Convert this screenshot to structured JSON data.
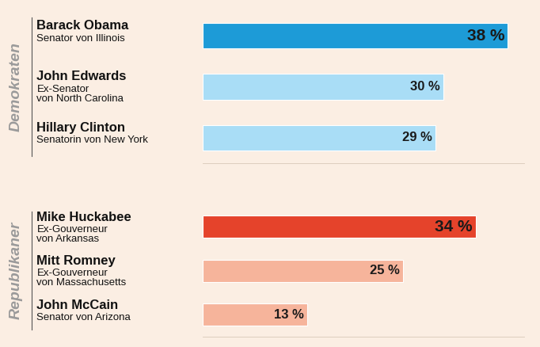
{
  "chart_data": [
    {
      "type": "bar",
      "orientation": "horizontal",
      "title": "Demokraten",
      "categories": [
        "Barack Obama",
        "John Edwards",
        "Hillary Clinton"
      ],
      "annotations": [
        "Senator von Illinois",
        "Ex-Senator\nvon North Carolina",
        "Senatorin von New York"
      ],
      "values": [
        38,
        30,
        29
      ],
      "value_labels": [
        "38 %",
        "30 %",
        "29 %"
      ],
      "colors": [
        "#1d9bd7",
        "#a9ddf6",
        "#a9ddf6"
      ],
      "xlim": [
        0,
        40
      ],
      "data_labels": true,
      "tick_labels": false,
      "grid": false
    },
    {
      "type": "bar",
      "orientation": "horizontal",
      "title": "Republikaner",
      "categories": [
        "Mike Huckabee",
        "Mitt Romney",
        "John McCain"
      ],
      "annotations": [
        "Ex-Gouverneur\nvon Arkansas",
        "Ex-Gouverneur\nvon Massachusetts",
        "Senator von Arizona"
      ],
      "values": [
        34,
        25,
        13
      ],
      "value_labels": [
        "34 %",
        "25 %",
        "13 %"
      ],
      "colors": [
        "#e5432b",
        "#f6b49b",
        "#f6b49b"
      ],
      "xlim": [
        0,
        40
      ],
      "data_labels": true,
      "tick_labels": false,
      "grid": false
    }
  ]
}
